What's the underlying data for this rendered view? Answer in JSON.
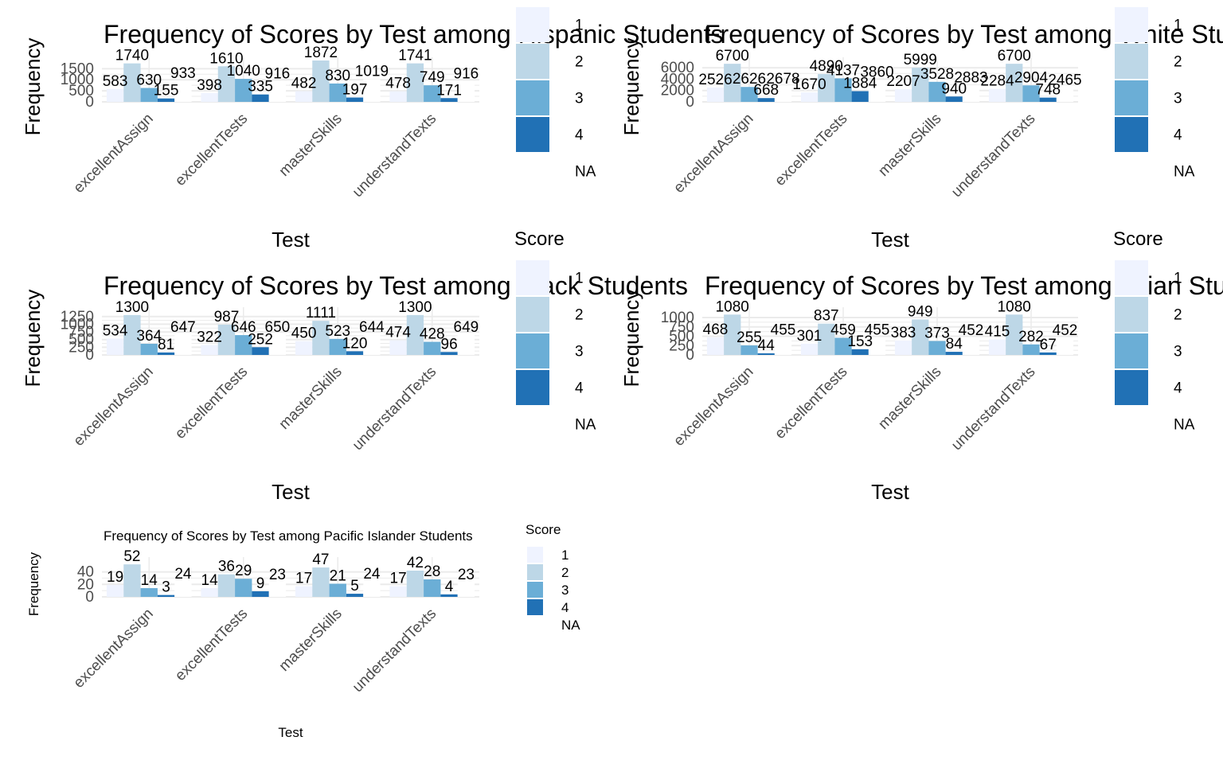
{
  "chart_data": [
    {
      "type": "bar",
      "title": "Frequency of Scores by Test among Hispanic Students",
      "xlabel": "Test",
      "ylabel": "Frequency",
      "categories": [
        "excellentAssign",
        "excellentTests",
        "masterSkills",
        "understandTexts"
      ],
      "yticks": [
        0,
        500,
        1000,
        1500
      ],
      "ylim": [
        0,
        1800
      ],
      "legend_title": "Score",
      "legend_placement": "right",
      "series": [
        {
          "name": "1",
          "values": [
            583,
            398,
            482,
            478
          ]
        },
        {
          "name": "2",
          "values": [
            1740,
            1610,
            1872,
            1741
          ]
        },
        {
          "name": "3",
          "values": [
            630,
            1040,
            830,
            749
          ]
        },
        {
          "name": "4",
          "values": [
            155,
            335,
            197,
            171
          ]
        },
        {
          "name": "NA",
          "values": [
            933,
            916,
            1019,
            916
          ]
        }
      ]
    },
    {
      "type": "bar",
      "title": "Frequency of Scores by Test among White Students",
      "xlabel": "Test",
      "ylabel": "Frequency",
      "categories": [
        "excellentAssign",
        "excellentTests",
        "masterSkills",
        "understandTexts"
      ],
      "yticks": [
        0,
        2000,
        4000,
        6000
      ],
      "ylim": [
        0,
        7000
      ],
      "legend_title": "Score",
      "legend_placement": "right",
      "series": [
        {
          "name": "1",
          "values": [
            2526,
            1670,
            2207,
            2284
          ]
        },
        {
          "name": "2",
          "values": [
            6700,
            4890,
            5999,
            6700
          ]
        },
        {
          "name": "3",
          "values": [
            2626,
            4137,
            3528,
            2904
          ]
        },
        {
          "name": "4",
          "values": [
            668,
            1884,
            940,
            748
          ]
        },
        {
          "name": "NA",
          "values": [
            2678,
            3860,
            2883,
            2465
          ]
        }
      ]
    },
    {
      "type": "bar",
      "title": "Frequency of Scores by Test among Black Students",
      "xlabel": "Test",
      "ylabel": "Frequency",
      "categories": [
        "excellentAssign",
        "excellentTests",
        "masterSkills",
        "understandTexts"
      ],
      "yticks": [
        0,
        250,
        500,
        750,
        1000,
        1250
      ],
      "ylim": [
        0,
        1400
      ],
      "legend_title": "Score",
      "legend_placement": "right",
      "series": [
        {
          "name": "1",
          "values": [
            534,
            322,
            450,
            474
          ]
        },
        {
          "name": "2",
          "values": [
            1300,
            987,
            1111,
            1300
          ]
        },
        {
          "name": "3",
          "values": [
            364,
            646,
            523,
            428
          ]
        },
        {
          "name": "4",
          "values": [
            81,
            252,
            120,
            96
          ]
        },
        {
          "name": "NA",
          "values": [
            647,
            650,
            644,
            649
          ]
        }
      ]
    },
    {
      "type": "bar",
      "title": "Frequency of Scores by Test among Asian Students",
      "xlabel": "Test",
      "ylabel": "Frequency",
      "categories": [
        "excellentAssign",
        "excellentTests",
        "masterSkills",
        "understandTexts"
      ],
      "yticks": [
        0,
        250,
        500,
        750,
        1000
      ],
      "ylim": [
        0,
        1150
      ],
      "legend_title": "Score",
      "legend_placement": "right",
      "series": [
        {
          "name": "1",
          "values": [
            468,
            301,
            383,
            415
          ]
        },
        {
          "name": "2",
          "values": [
            1080,
            837,
            949,
            1080
          ]
        },
        {
          "name": "3",
          "values": [
            255,
            459,
            373,
            282
          ]
        },
        {
          "name": "4",
          "values": [
            44,
            153,
            84,
            67
          ]
        },
        {
          "name": "NA",
          "values": [
            455,
            455,
            452,
            452
          ]
        }
      ]
    },
    {
      "type": "bar",
      "title": "Frequency of Scores by Test among Pacific Islander Students",
      "xlabel": "Test",
      "ylabel": "Frequency",
      "categories": [
        "excellentAssign",
        "excellentTests",
        "masterSkills",
        "understandTexts"
      ],
      "yticks": [
        0,
        20,
        40
      ],
      "ylim": [
        0,
        56
      ],
      "legend_title": "Score",
      "legend_placement": "right",
      "series": [
        {
          "name": "1",
          "values": [
            19,
            14,
            17,
            17
          ]
        },
        {
          "name": "2",
          "values": [
            52,
            36,
            47,
            42
          ]
        },
        {
          "name": "3",
          "values": [
            14,
            29,
            21,
            28
          ]
        },
        {
          "name": "4",
          "values": [
            3,
            9,
            5,
            4
          ]
        },
        {
          "name": "NA",
          "values": [
            24,
            23,
            24,
            23
          ]
        }
      ]
    }
  ],
  "colors": {
    "score_1": "#eff3ff",
    "score_2": "#bdd7e7",
    "score_3": "#6baed6",
    "score_4": "#2171b5",
    "score_na": "#ffffff",
    "grid": "#ebebeb"
  }
}
